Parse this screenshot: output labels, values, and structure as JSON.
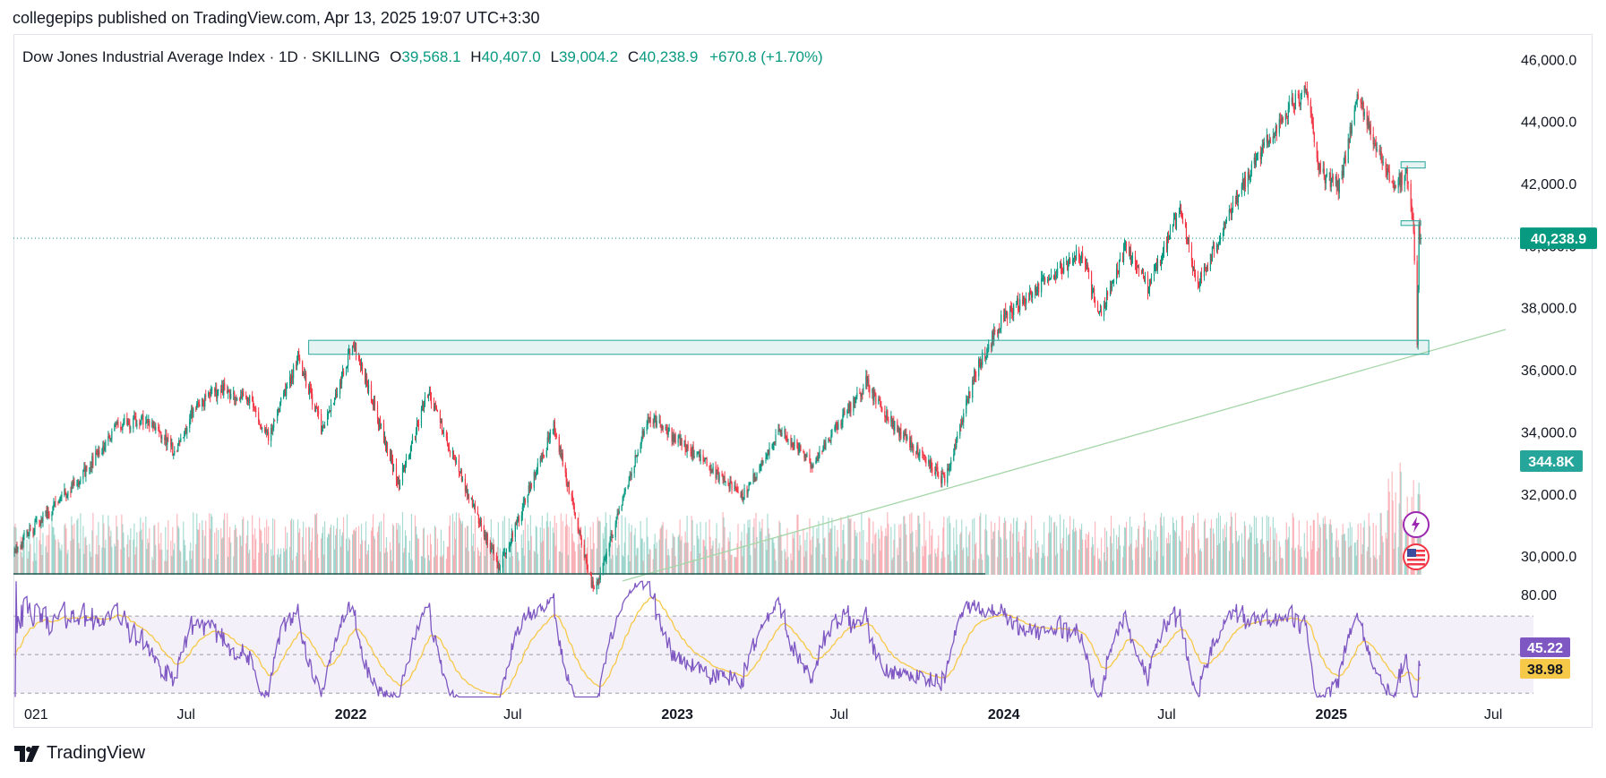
{
  "caption": "collegepips published on TradingView.com, Apr 13, 2025 19:07 UTC+3:30",
  "watermark": "TradingView",
  "icons": {
    "lightning": "lightning-icon",
    "flag": "us-flag-icon"
  },
  "colors": {
    "up": "#089981",
    "down": "#f23645",
    "rsi": "#7e57c2",
    "rsi_ma": "#f7c948",
    "trend": "#a5d6a7",
    "zone": "#26a69a",
    "price_label": "#089981",
    "volume_label": "#26a69a"
  },
  "chart_data": {
    "type": "candlestick",
    "title": "Dow Jones Industrial Average Index · 1D · SKILLING",
    "ohlc": {
      "o_label": "O",
      "o": "39,568.1",
      "h_label": "H",
      "h": "40,407.0",
      "l_label": "L",
      "l": "39,004.2",
      "c_label": "C",
      "c": "40,238.9",
      "change": "+670.8 (+1.70%)"
    },
    "y_ticks": [
      "46,000.0",
      "44,000.0",
      "42,000.0",
      "40,000.0",
      "38,000.0",
      "36,000.0",
      "34,000.0",
      "32,000.0",
      "30,000.0"
    ],
    "y_tick_values": [
      46000,
      44000,
      42000,
      40000,
      38000,
      36000,
      34000,
      32000,
      30000
    ],
    "ylim": [
      29400,
      46700
    ],
    "x_ticks": [
      "021",
      "Jul",
      "2022",
      "Jul",
      "2023",
      "Jul",
      "2024",
      "Jul",
      "2025",
      "Jul"
    ],
    "x_tick_dates": [
      "2021-01-01",
      "2021-07-01",
      "2022-01-01",
      "2022-07-01",
      "2023-01-01",
      "2023-07-01",
      "2024-01-01",
      "2024-07-01",
      "2025-01-01",
      "2025-07-01"
    ],
    "x_range": [
      "2020-12-20",
      "2025-08-15"
    ],
    "price_label": "40,238.9",
    "last_close": 40238.9,
    "volume_label": "344.8K",
    "anchors": [
      [
        "2020-12-20",
        30200
      ],
      [
        "2021-01-15",
        31000
      ],
      [
        "2021-03-10",
        32700
      ],
      [
        "2021-04-15",
        34200
      ],
      [
        "2021-05-20",
        34400
      ],
      [
        "2021-06-20",
        33300
      ],
      [
        "2021-07-10",
        34800
      ],
      [
        "2021-08-10",
        35400
      ],
      [
        "2021-09-10",
        35000
      ],
      [
        "2021-10-01",
        33800
      ],
      [
        "2021-11-03",
        36400
      ],
      [
        "2021-12-01",
        34000
      ],
      [
        "2022-01-04",
        36900
      ],
      [
        "2022-02-24",
        32300
      ],
      [
        "2022-03-29",
        35300
      ],
      [
        "2022-05-20",
        31400
      ],
      [
        "2022-06-16",
        29600
      ],
      [
        "2022-08-16",
        34200
      ],
      [
        "2022-09-30",
        28800
      ],
      [
        "2022-11-30",
        34500
      ],
      [
        "2023-01-20",
        33300
      ],
      [
        "2023-03-15",
        31900
      ],
      [
        "2023-04-28",
        34100
      ],
      [
        "2023-05-31",
        32900
      ],
      [
        "2023-07-31",
        35600
      ],
      [
        "2023-08-20",
        34600
      ],
      [
        "2023-10-27",
        32400
      ],
      [
        "2023-11-30",
        35900
      ],
      [
        "2023-12-31",
        37700
      ],
      [
        "2024-03-28",
        39800
      ],
      [
        "2024-04-17",
        37700
      ],
      [
        "2024-05-17",
        40000
      ],
      [
        "2024-06-10",
        38700
      ],
      [
        "2024-07-17",
        41200
      ],
      [
        "2024-08-05",
        38700
      ],
      [
        "2024-09-30",
        42300
      ],
      [
        "2024-11-11",
        44300
      ],
      [
        "2024-12-04",
        45000
      ],
      [
        "2024-12-20",
        42300
      ],
      [
        "2025-01-10",
        41900
      ],
      [
        "2025-01-30",
        44800
      ],
      [
        "2025-03-10",
        41900
      ],
      [
        "2025-03-26",
        42300
      ],
      [
        "2025-04-03",
        40500
      ],
      [
        "2025-04-07",
        36600
      ],
      [
        "2025-04-09",
        40600
      ],
      [
        "2025-04-11",
        40238.9
      ]
    ],
    "zones": [
      {
        "name": "support-zone",
        "start": "2021-11-15",
        "end": "2025-04-20",
        "low": 36500,
        "high": 36950
      },
      {
        "name": "upper-zone",
        "start": "2025-03-20",
        "end": "2025-04-16",
        "low": 42500,
        "high": 42700
      },
      {
        "name": "lower-zone",
        "start": "2025-03-20",
        "end": "2025-04-11",
        "low": 40650,
        "high": 40800
      }
    ],
    "trendline": {
      "start": [
        "2022-11-01",
        29200
      ],
      "end": [
        "2025-07-15",
        37300
      ]
    },
    "rsi": {
      "ticks": [
        "80.00"
      ],
      "rsi_label": "45.22",
      "ma_label": "38.98",
      "band": [
        30,
        70
      ],
      "mid": 50,
      "ylim": [
        25,
        90
      ]
    }
  }
}
